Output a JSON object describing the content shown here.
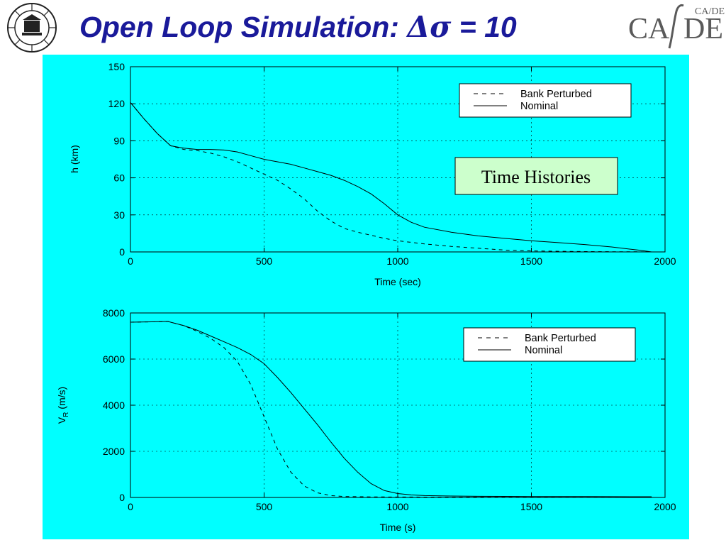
{
  "title": {
    "prefix": "Open Loop Simulation: ",
    "delta": "Δ",
    "sigma": "σ",
    "suffix": " = 10"
  },
  "logos": {
    "left": "iit-bombay-emblem",
    "right": {
      "text_ca": "CA",
      "text_de": "DE",
      "small": "CA/DE"
    }
  },
  "panel_color": "#00ffff",
  "annotation": "Time Histories",
  "chart_data": [
    {
      "type": "line",
      "title": "",
      "xlabel": "Time (sec)",
      "ylabel": "h (km)",
      "xlim": [
        0,
        2000
      ],
      "ylim": [
        0,
        150
      ],
      "xticks": [
        0,
        500,
        1000,
        1500,
        2000
      ],
      "yticks": [
        0,
        30,
        60,
        90,
        120,
        150
      ],
      "grid": true,
      "legend": "top-right",
      "series": [
        {
          "name": "Bank Perturbed",
          "style": "dashed",
          "x": [
            0,
            50,
            100,
            150,
            200,
            250,
            300,
            350,
            400,
            450,
            500,
            550,
            600,
            650,
            700,
            750,
            800,
            850,
            900,
            950,
            1000,
            1100,
            1200,
            1300,
            1400,
            1500,
            1600,
            1700,
            1800,
            1900,
            1950
          ],
          "y": [
            121,
            108,
            96,
            86,
            83,
            82,
            80,
            77,
            73,
            68,
            63,
            58,
            51,
            43,
            33,
            25,
            19,
            16,
            13.5,
            11,
            9,
            6.5,
            4.5,
            3,
            1.5,
            0.8,
            0.5,
            0.3,
            0.2,
            0.1,
            0
          ]
        },
        {
          "name": "Nominal",
          "style": "solid",
          "x": [
            0,
            50,
            100,
            150,
            200,
            250,
            300,
            350,
            400,
            450,
            500,
            550,
            600,
            650,
            700,
            750,
            800,
            850,
            900,
            950,
            1000,
            1050,
            1100,
            1200,
            1300,
            1400,
            1500,
            1600,
            1700,
            1800,
            1900,
            1950
          ],
          "y": [
            121,
            108,
            96,
            86,
            84,
            83,
            83,
            82.5,
            81,
            78,
            75,
            73,
            71,
            68,
            65,
            62,
            58,
            53,
            47,
            39,
            30,
            24,
            20,
            16,
            13,
            11,
            9,
            7.5,
            6,
            4,
            1.5,
            0
          ]
        }
      ]
    },
    {
      "type": "line",
      "title": "",
      "xlabel": "Time (s)",
      "ylabel_main": "V",
      "ylabel_sub": "R",
      "ylabel_unit": " (m/s)",
      "xlim": [
        0,
        2000
      ],
      "ylim": [
        0,
        8000
      ],
      "xticks": [
        0,
        500,
        1000,
        1500,
        2000
      ],
      "yticks": [
        0,
        2000,
        4000,
        6000,
        8000
      ],
      "grid": true,
      "legend": "top-right",
      "series": [
        {
          "name": "Bank Perturbed",
          "style": "dashed",
          "x": [
            0,
            100,
            140,
            200,
            250,
            300,
            350,
            400,
            450,
            500,
            550,
            600,
            650,
            700,
            750,
            800,
            900,
            1000,
            1200,
            1400,
            1600,
            1800,
            1950
          ],
          "y": [
            7600,
            7620,
            7630,
            7450,
            7200,
            6900,
            6500,
            5900,
            4900,
            3500,
            2100,
            1100,
            500,
            200,
            80,
            40,
            25,
            20,
            15,
            12,
            10,
            8,
            5
          ]
        },
        {
          "name": "Nominal",
          "style": "solid",
          "x": [
            0,
            100,
            140,
            200,
            250,
            300,
            350,
            400,
            450,
            500,
            550,
            600,
            650,
            700,
            750,
            800,
            850,
            900,
            950,
            1000,
            1050,
            1100,
            1200,
            1300,
            1400,
            1500,
            1600,
            1700,
            1800,
            1950
          ],
          "y": [
            7600,
            7620,
            7630,
            7450,
            7250,
            7000,
            6750,
            6500,
            6200,
            5800,
            5200,
            4550,
            3850,
            3150,
            2400,
            1700,
            1100,
            600,
            300,
            170,
            110,
            80,
            60,
            50,
            45,
            40,
            40,
            38,
            35,
            30
          ]
        }
      ]
    }
  ]
}
